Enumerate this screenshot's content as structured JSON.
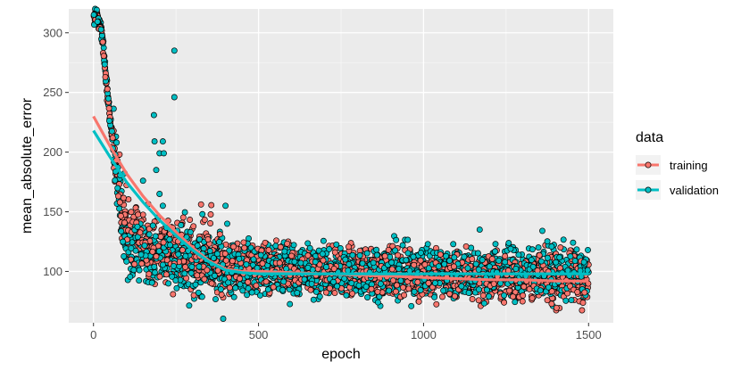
{
  "chart_data": {
    "type": "scatter",
    "xlabel": "epoch",
    "ylabel": "mean_absolute_error",
    "xlim": [
      -75,
      1575
    ],
    "ylim": [
      57,
      320
    ],
    "x_ticks": [
      0,
      500,
      1000,
      1500
    ],
    "y_ticks": [
      100,
      150,
      200,
      250,
      300
    ],
    "grid": true,
    "legend": {
      "title": "data",
      "position": "right"
    },
    "series": [
      {
        "name": "training",
        "color": "#F8766D",
        "smooth": [
          [
            0,
            230
          ],
          [
            50,
            205
          ],
          [
            100,
            182
          ],
          [
            150,
            163
          ],
          [
            200,
            147
          ],
          [
            250,
            133
          ],
          [
            300,
            120
          ],
          [
            350,
            109
          ],
          [
            400,
            102
          ],
          [
            450,
            100
          ],
          [
            500,
            100
          ],
          [
            600,
            99
          ],
          [
            700,
            98
          ],
          [
            800,
            97
          ],
          [
            900,
            96
          ],
          [
            1000,
            95
          ],
          [
            1100,
            94
          ],
          [
            1200,
            93
          ],
          [
            1300,
            93
          ],
          [
            1400,
            92
          ],
          [
            1500,
            92
          ]
        ],
        "profile": [
          [
            0,
            310
          ],
          [
            10,
            315
          ],
          [
            25,
            300
          ],
          [
            40,
            255
          ],
          [
            55,
            215
          ],
          [
            70,
            180
          ],
          [
            90,
            150
          ],
          [
            110,
            135
          ],
          [
            130,
            128
          ],
          [
            160,
            124
          ],
          [
            200,
            120
          ],
          [
            260,
            116
          ],
          [
            330,
            110
          ],
          [
            400,
            104
          ],
          [
            500,
            101
          ],
          [
            700,
            100
          ],
          [
            900,
            99
          ],
          [
            1100,
            96
          ],
          [
            1300,
            94
          ],
          [
            1500,
            92
          ]
        ],
        "noise": 10
      },
      {
        "name": "validation",
        "color": "#00BFC4",
        "smooth": [
          [
            0,
            218
          ],
          [
            50,
            196
          ],
          [
            100,
            175
          ],
          [
            150,
            158
          ],
          [
            200,
            143
          ],
          [
            250,
            130
          ],
          [
            300,
            118
          ],
          [
            350,
            108
          ],
          [
            400,
            101
          ],
          [
            450,
            99
          ],
          [
            500,
            98
          ],
          [
            600,
            98
          ],
          [
            700,
            98
          ],
          [
            800,
            98
          ],
          [
            900,
            98
          ],
          [
            1000,
            98
          ],
          [
            1100,
            98
          ],
          [
            1200,
            98
          ],
          [
            1300,
            98
          ],
          [
            1400,
            98
          ],
          [
            1500,
            98
          ]
        ],
        "profile": [
          [
            0,
            312
          ],
          [
            10,
            315
          ],
          [
            25,
            300
          ],
          [
            40,
            258
          ],
          [
            55,
            220
          ],
          [
            70,
            185
          ],
          [
            85,
            140
          ],
          [
            110,
            120
          ],
          [
            150,
            113
          ],
          [
            250,
            108
          ],
          [
            400,
            103
          ],
          [
            600,
            101
          ],
          [
            900,
            100
          ],
          [
            1200,
            100
          ],
          [
            1500,
            99
          ]
        ],
        "noise": 11,
        "outliers": [
          [
            245,
            285
          ],
          [
            245,
            246
          ],
          [
            183,
            231
          ],
          [
            185,
            209
          ],
          [
            200,
            199
          ],
          [
            210,
            209
          ],
          [
            213,
            199
          ],
          [
            190,
            185
          ],
          [
            200,
            165
          ],
          [
            210,
            155
          ],
          [
            400,
            155
          ],
          [
            330,
            148
          ],
          [
            1170,
            135
          ],
          [
            1360,
            134
          ],
          [
            405,
            140
          ],
          [
            150,
            176
          ]
        ]
      }
    ]
  }
}
